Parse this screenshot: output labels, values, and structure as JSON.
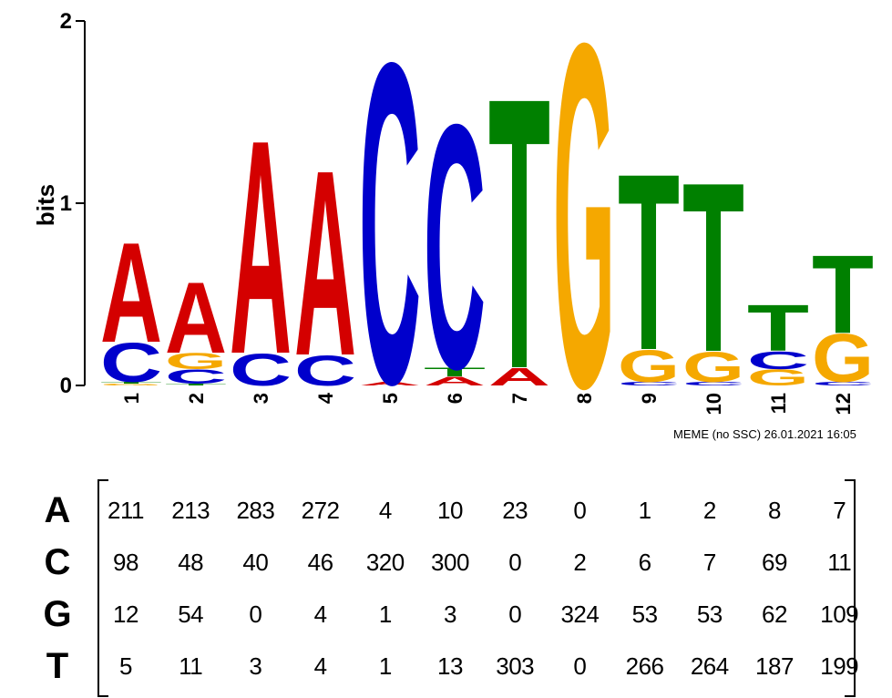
{
  "chart_data": {
    "type": "sequence-logo",
    "ylabel": "bits",
    "ylim": [
      0,
      2
    ],
    "yticks": [
      "0",
      "1",
      "2"
    ],
    "positions": [
      "1",
      "2",
      "3",
      "4",
      "5",
      "6",
      "7",
      "8",
      "9",
      "10",
      "11",
      "12"
    ],
    "colors": {
      "A": "#d40000",
      "C": "#0000cc",
      "G": "#f5a800",
      "T": "#008000"
    },
    "stacks": [
      [
        {
          "base": "G",
          "bits": 0.01
        },
        {
          "base": "T",
          "bits": 0.01
        },
        {
          "base": "C",
          "bits": 0.22
        },
        {
          "base": "A",
          "bits": 0.56
        }
      ],
      [
        {
          "base": "T",
          "bits": 0.01
        },
        {
          "base": "C",
          "bits": 0.08
        },
        {
          "base": "G",
          "bits": 0.09
        },
        {
          "base": "A",
          "bits": 0.4
        }
      ],
      [
        {
          "base": "C",
          "bits": 0.18
        },
        {
          "base": "A",
          "bits": 1.2
        }
      ],
      [
        {
          "base": "C",
          "bits": 0.17
        },
        {
          "base": "A",
          "bits": 1.04
        }
      ],
      [
        {
          "base": "A",
          "bits": 0.02
        },
        {
          "base": "C",
          "bits": 1.8
        }
      ],
      [
        {
          "base": "A",
          "bits": 0.05
        },
        {
          "base": "T",
          "bits": 0.05
        },
        {
          "base": "C",
          "bits": 1.37
        }
      ],
      [
        {
          "base": "A",
          "bits": 0.1
        },
        {
          "base": "T",
          "bits": 1.52
        }
      ],
      [
        {
          "base": "G",
          "bits": 1.93
        }
      ],
      [
        {
          "base": "C",
          "bits": 0.02
        },
        {
          "base": "G",
          "bits": 0.18
        },
        {
          "base": "T",
          "bits": 0.99
        }
      ],
      [
        {
          "base": "C",
          "bits": 0.02
        },
        {
          "base": "G",
          "bits": 0.17
        },
        {
          "base": "T",
          "bits": 0.95
        }
      ],
      [
        {
          "base": "G",
          "bits": 0.09
        },
        {
          "base": "C",
          "bits": 0.1
        },
        {
          "base": "T",
          "bits": 0.26
        }
      ],
      [
        {
          "base": "C",
          "bits": 0.02
        },
        {
          "base": "G",
          "bits": 0.27
        },
        {
          "base": "T",
          "bits": 0.44
        }
      ]
    ],
    "count_matrix": {
      "rows": [
        "A",
        "C",
        "G",
        "T"
      ],
      "values": [
        [
          "211",
          "213",
          "283",
          "272",
          "4",
          "10",
          "23",
          "0",
          "1",
          "2",
          "8",
          "7"
        ],
        [
          "98",
          "48",
          "40",
          "46",
          "320",
          "300",
          "0",
          "2",
          "6",
          "7",
          "69",
          "11"
        ],
        [
          "12",
          "54",
          "0",
          "4",
          "1",
          "3",
          "0",
          "324",
          "53",
          "53",
          "62",
          "109"
        ],
        [
          "5",
          "11",
          "3",
          "4",
          "1",
          "13",
          "303",
          "0",
          "266",
          "264",
          "187",
          "199"
        ]
      ]
    }
  },
  "footer": "MEME (no SSC) 26.01.2021 16:05"
}
